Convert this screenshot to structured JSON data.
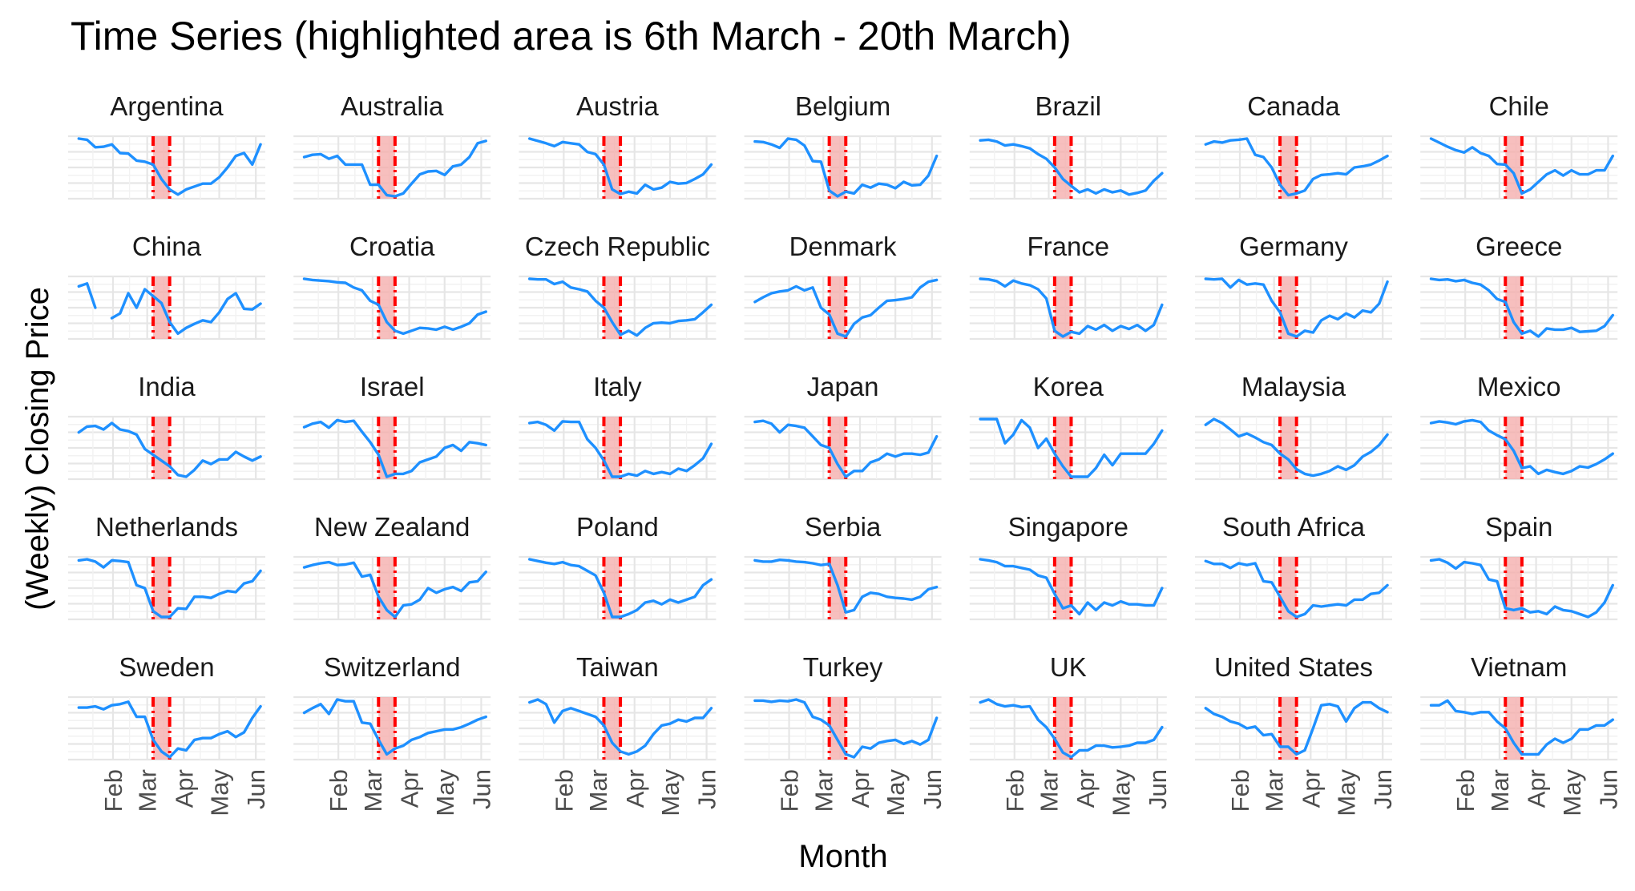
{
  "chart_data": {
    "type": "line",
    "title": "Time Series (highlighted area is 6th March - 20th March)",
    "xlabel": "Month",
    "ylabel": "(Weekly) Closing Price",
    "x_ticks": [
      "Feb",
      "Mar",
      "Apr",
      "May",
      "Jun"
    ],
    "x_domain": [
      "2020-01-03",
      "2020-06-05"
    ],
    "highlight": {
      "start": "2020-03-06",
      "end": "2020-03-20"
    },
    "y_axis": "free scales per panel; no tick labels shown",
    "line_color": "#1E90FF",
    "highlight_fill": "#F4A9A8",
    "highlight_line_color": "#FF0000",
    "x": [
      "2020-01-03",
      "2020-01-10",
      "2020-01-17",
      "2020-01-24",
      "2020-01-31",
      "2020-02-07",
      "2020-02-14",
      "2020-02-21",
      "2020-02-28",
      "2020-03-06",
      "2020-03-13",
      "2020-03-20",
      "2020-03-27",
      "2020-04-03",
      "2020-04-10",
      "2020-04-17",
      "2020-04-24",
      "2020-05-01",
      "2020-05-08",
      "2020-05-15",
      "2020-05-22",
      "2020-05-29",
      "2020-06-05"
    ],
    "values_note": "Relative closing level per panel, 0 = panel minimum, 1 = panel maximum (y axes unlabeled in source)",
    "panels": [
      {
        "name": "Argentina",
        "values": [
          1.0,
          0.98,
          0.85,
          0.86,
          0.9,
          0.75,
          0.74,
          0.62,
          0.6,
          0.55,
          0.3,
          0.12,
          0.03,
          0.12,
          0.17,
          0.22,
          0.22,
          0.33,
          0.5,
          0.7,
          0.75,
          0.55,
          0.9
        ]
      },
      {
        "name": "Australia",
        "values": [
          0.68,
          0.72,
          0.73,
          0.65,
          0.7,
          0.55,
          0.55,
          0.55,
          0.2,
          0.2,
          0.02,
          0.0,
          0.05,
          0.22,
          0.38,
          0.43,
          0.44,
          0.37,
          0.52,
          0.55,
          0.68,
          0.92,
          0.96
        ]
      },
      {
        "name": "Austria",
        "values": [
          1.0,
          0.96,
          0.92,
          0.87,
          0.94,
          0.92,
          0.9,
          0.77,
          0.73,
          0.55,
          0.12,
          0.04,
          0.08,
          0.05,
          0.2,
          0.12,
          0.15,
          0.25,
          0.22,
          0.23,
          0.3,
          0.38,
          0.55
        ]
      },
      {
        "name": "Belgium",
        "values": [
          0.95,
          0.94,
          0.9,
          0.84,
          1.0,
          0.98,
          0.88,
          0.61,
          0.6,
          0.1,
          0.0,
          0.08,
          0.05,
          0.2,
          0.15,
          0.22,
          0.2,
          0.14,
          0.25,
          0.19,
          0.2,
          0.36,
          0.7
        ]
      },
      {
        "name": "Brazil",
        "values": [
          0.97,
          0.98,
          0.95,
          0.88,
          0.9,
          0.87,
          0.83,
          0.73,
          0.65,
          0.5,
          0.3,
          0.18,
          0.07,
          0.12,
          0.05,
          0.12,
          0.07,
          0.1,
          0.03,
          0.06,
          0.1,
          0.27,
          0.4
        ]
      },
      {
        "name": "Canada",
        "values": [
          0.9,
          0.95,
          0.93,
          0.97,
          0.98,
          1.0,
          0.72,
          0.68,
          0.5,
          0.2,
          0.02,
          0.05,
          0.1,
          0.3,
          0.37,
          0.38,
          0.4,
          0.38,
          0.5,
          0.52,
          0.55,
          0.62,
          0.7
        ]
      },
      {
        "name": "Chile",
        "values": [
          1.0,
          0.93,
          0.86,
          0.8,
          0.76,
          0.85,
          0.75,
          0.7,
          0.56,
          0.55,
          0.4,
          0.05,
          0.12,
          0.25,
          0.38,
          0.45,
          0.36,
          0.45,
          0.38,
          0.38,
          0.45,
          0.45,
          0.7
        ]
      },
      {
        "name": "China",
        "values": [
          0.87,
          0.92,
          0.5,
          null,
          0.32,
          0.4,
          0.75,
          0.5,
          0.82,
          0.7,
          0.58,
          0.25,
          0.05,
          0.15,
          0.22,
          0.28,
          0.25,
          0.42,
          0.65,
          0.75,
          0.48,
          0.47,
          0.57
        ]
      },
      {
        "name": "Croatia",
        "values": [
          1.0,
          0.98,
          0.97,
          0.96,
          0.94,
          0.93,
          0.85,
          0.8,
          0.62,
          0.55,
          0.25,
          0.1,
          0.05,
          0.1,
          0.15,
          0.14,
          0.12,
          0.17,
          0.12,
          0.17,
          0.23,
          0.38,
          0.43
        ]
      },
      {
        "name": "Czech Republic",
        "values": [
          1.0,
          0.99,
          0.99,
          0.91,
          0.95,
          0.85,
          0.82,
          0.78,
          0.62,
          0.5,
          0.25,
          0.03,
          0.1,
          0.02,
          0.15,
          0.23,
          0.24,
          0.23,
          0.27,
          0.28,
          0.3,
          0.42,
          0.55
        ]
      },
      {
        "name": "Denmark",
        "values": [
          0.6,
          0.68,
          0.75,
          0.78,
          0.8,
          0.87,
          0.8,
          0.85,
          0.5,
          0.38,
          0.05,
          0.0,
          0.22,
          0.33,
          0.37,
          0.5,
          0.62,
          0.63,
          0.65,
          0.68,
          0.85,
          0.95,
          0.98
        ]
      },
      {
        "name": "France",
        "values": [
          1.0,
          0.99,
          0.96,
          0.87,
          0.97,
          0.92,
          0.89,
          0.82,
          0.66,
          0.1,
          0.0,
          0.08,
          0.05,
          0.18,
          0.12,
          0.2,
          0.1,
          0.18,
          0.13,
          0.2,
          0.1,
          0.2,
          0.55
        ]
      },
      {
        "name": "Germany",
        "values": [
          1.0,
          0.99,
          1.0,
          0.85,
          0.98,
          0.9,
          0.92,
          0.9,
          0.62,
          0.42,
          0.05,
          0.0,
          0.1,
          0.07,
          0.28,
          0.36,
          0.3,
          0.4,
          0.33,
          0.45,
          0.42,
          0.57,
          0.95
        ]
      },
      {
        "name": "Greece",
        "values": [
          1.0,
          0.98,
          0.99,
          0.96,
          0.98,
          0.93,
          0.9,
          0.8,
          0.65,
          0.6,
          0.25,
          0.05,
          0.1,
          0.0,
          0.14,
          0.12,
          0.12,
          0.15,
          0.08,
          0.09,
          0.1,
          0.18,
          0.37
        ]
      },
      {
        "name": "India",
        "values": [
          0.77,
          0.87,
          0.88,
          0.82,
          0.93,
          0.82,
          0.79,
          0.73,
          0.48,
          0.38,
          0.28,
          0.18,
          0.03,
          0.0,
          0.12,
          0.28,
          0.22,
          0.3,
          0.3,
          0.43,
          0.35,
          0.28,
          0.35
        ]
      },
      {
        "name": "Israel",
        "values": [
          0.86,
          0.92,
          0.95,
          0.85,
          0.98,
          0.95,
          0.97,
          0.78,
          0.6,
          0.38,
          0.0,
          0.05,
          0.05,
          0.1,
          0.25,
          0.3,
          0.35,
          0.5,
          0.55,
          0.45,
          0.6,
          0.58,
          0.55
        ]
      },
      {
        "name": "Italy",
        "values": [
          0.93,
          0.95,
          0.9,
          0.8,
          0.96,
          0.95,
          0.95,
          0.65,
          0.5,
          0.28,
          0.0,
          0.0,
          0.05,
          0.02,
          0.1,
          0.05,
          0.08,
          0.05,
          0.14,
          0.1,
          0.2,
          0.32,
          0.57
        ]
      },
      {
        "name": "Japan",
        "values": [
          0.95,
          0.97,
          0.92,
          0.77,
          0.9,
          0.88,
          0.85,
          0.7,
          0.55,
          0.5,
          0.22,
          0.0,
          0.1,
          0.1,
          0.25,
          0.3,
          0.4,
          0.35,
          0.4,
          0.4,
          0.38,
          0.42,
          0.7
        ]
      },
      {
        "name": "Korea",
        "values": [
          1.0,
          1.0,
          1.0,
          0.58,
          0.73,
          0.98,
          0.85,
          0.5,
          0.66,
          0.4,
          0.18,
          0.0,
          0.0,
          0.0,
          0.15,
          0.38,
          0.2,
          0.4,
          0.4,
          0.4,
          0.4,
          0.57,
          0.8
        ]
      },
      {
        "name": "Malaysia",
        "values": [
          0.9,
          1.0,
          0.93,
          0.82,
          0.7,
          0.75,
          0.68,
          0.6,
          0.55,
          0.4,
          0.3,
          0.13,
          0.05,
          0.02,
          0.05,
          0.1,
          0.18,
          0.12,
          0.2,
          0.35,
          0.43,
          0.55,
          0.73
        ]
      },
      {
        "name": "Mexico",
        "values": [
          0.93,
          0.96,
          0.94,
          0.91,
          0.96,
          0.98,
          0.95,
          0.8,
          0.72,
          0.65,
          0.45,
          0.15,
          0.18,
          0.05,
          0.12,
          0.08,
          0.05,
          0.1,
          0.18,
          0.16,
          0.22,
          0.3,
          0.4
        ]
      },
      {
        "name": "Netherlands",
        "values": [
          0.98,
          1.0,
          0.96,
          0.86,
          0.98,
          0.97,
          0.95,
          0.55,
          0.5,
          0.1,
          0.0,
          0.0,
          0.15,
          0.14,
          0.35,
          0.35,
          0.33,
          0.4,
          0.45,
          0.43,
          0.58,
          0.62,
          0.8
        ]
      },
      {
        "name": "New Zealand",
        "values": [
          0.86,
          0.9,
          0.93,
          0.95,
          0.9,
          0.91,
          0.94,
          0.7,
          0.73,
          0.35,
          0.12,
          0.0,
          0.2,
          0.22,
          0.3,
          0.5,
          0.42,
          0.48,
          0.52,
          0.45,
          0.6,
          0.62,
          0.78
        ]
      },
      {
        "name": "Poland",
        "values": [
          1.0,
          0.97,
          0.94,
          0.92,
          0.95,
          0.9,
          0.88,
          0.8,
          0.72,
          0.42,
          0.0,
          0.0,
          0.05,
          0.12,
          0.25,
          0.28,
          0.22,
          0.3,
          0.25,
          0.3,
          0.35,
          0.55,
          0.65
        ]
      },
      {
        "name": "Serbia",
        "values": [
          0.98,
          0.96,
          0.96,
          0.99,
          0.98,
          0.96,
          0.95,
          0.93,
          0.9,
          0.92,
          0.55,
          0.08,
          0.12,
          0.35,
          0.42,
          0.4,
          0.35,
          0.33,
          0.32,
          0.3,
          0.35,
          0.48,
          0.52
        ]
      },
      {
        "name": "Singapore",
        "values": [
          1.0,
          0.98,
          0.95,
          0.88,
          0.88,
          0.85,
          0.82,
          0.72,
          0.68,
          0.4,
          0.15,
          0.2,
          0.05,
          0.25,
          0.12,
          0.25,
          0.2,
          0.27,
          0.22,
          0.22,
          0.2,
          0.2,
          0.5
        ]
      },
      {
        "name": "South Africa",
        "values": [
          0.97,
          0.92,
          0.92,
          0.85,
          0.93,
          0.9,
          0.93,
          0.62,
          0.6,
          0.35,
          0.1,
          0.0,
          0.05,
          0.2,
          0.18,
          0.2,
          0.22,
          0.2,
          0.3,
          0.3,
          0.4,
          0.42,
          0.55
        ]
      },
      {
        "name": "Spain",
        "values": [
          0.98,
          1.0,
          0.94,
          0.84,
          0.95,
          0.93,
          0.9,
          0.65,
          0.62,
          0.15,
          0.12,
          0.15,
          0.08,
          0.1,
          0.05,
          0.18,
          0.12,
          0.1,
          0.05,
          0.0,
          0.08,
          0.25,
          0.55
        ]
      },
      {
        "name": "Sweden",
        "values": [
          0.86,
          0.86,
          0.88,
          0.83,
          0.9,
          0.92,
          0.96,
          0.7,
          0.7,
          0.3,
          0.1,
          0.0,
          0.15,
          0.12,
          0.3,
          0.33,
          0.33,
          0.4,
          0.45,
          0.35,
          0.43,
          0.68,
          0.88
        ]
      },
      {
        "name": "Switzerland",
        "values": [
          0.77,
          0.85,
          0.92,
          0.75,
          1.0,
          0.97,
          0.97,
          0.6,
          0.58,
          0.3,
          0.05,
          0.15,
          0.2,
          0.3,
          0.35,
          0.42,
          0.45,
          0.48,
          0.48,
          0.52,
          0.58,
          0.65,
          0.7
        ]
      },
      {
        "name": "Taiwan",
        "values": [
          0.95,
          1.0,
          0.92,
          0.6,
          0.8,
          0.85,
          0.8,
          0.75,
          0.7,
          0.55,
          0.25,
          0.1,
          0.05,
          0.1,
          0.2,
          0.4,
          0.55,
          0.58,
          0.65,
          0.62,
          0.68,
          0.68,
          0.85
        ]
      },
      {
        "name": "Turkey",
        "values": [
          0.98,
          0.98,
          0.96,
          0.98,
          0.97,
          1.0,
          0.95,
          0.7,
          0.65,
          0.55,
          0.3,
          0.05,
          0.0,
          0.18,
          0.15,
          0.25,
          0.28,
          0.3,
          0.23,
          0.28,
          0.22,
          0.3,
          0.68
        ]
      },
      {
        "name": "UK",
        "values": [
          0.95,
          1.0,
          0.92,
          0.88,
          0.9,
          0.87,
          0.88,
          0.65,
          0.52,
          0.32,
          0.08,
          0.0,
          0.12,
          0.12,
          0.2,
          0.2,
          0.17,
          0.18,
          0.2,
          0.25,
          0.25,
          0.3,
          0.52
        ]
      },
      {
        "name": "United States",
        "values": [
          0.85,
          0.75,
          0.7,
          0.62,
          0.58,
          0.5,
          0.53,
          0.38,
          0.4,
          0.18,
          0.18,
          0.05,
          0.12,
          0.5,
          0.9,
          0.92,
          0.88,
          0.62,
          0.85,
          0.95,
          0.95,
          0.85,
          0.78
        ]
      },
      {
        "name": "Vietnam",
        "values": [
          0.9,
          0.9,
          0.98,
          0.8,
          0.78,
          0.75,
          0.78,
          0.78,
          0.62,
          0.5,
          0.25,
          0.05,
          0.05,
          0.05,
          0.22,
          0.32,
          0.25,
          0.32,
          0.48,
          0.48,
          0.55,
          0.55,
          0.65
        ]
      }
    ]
  }
}
